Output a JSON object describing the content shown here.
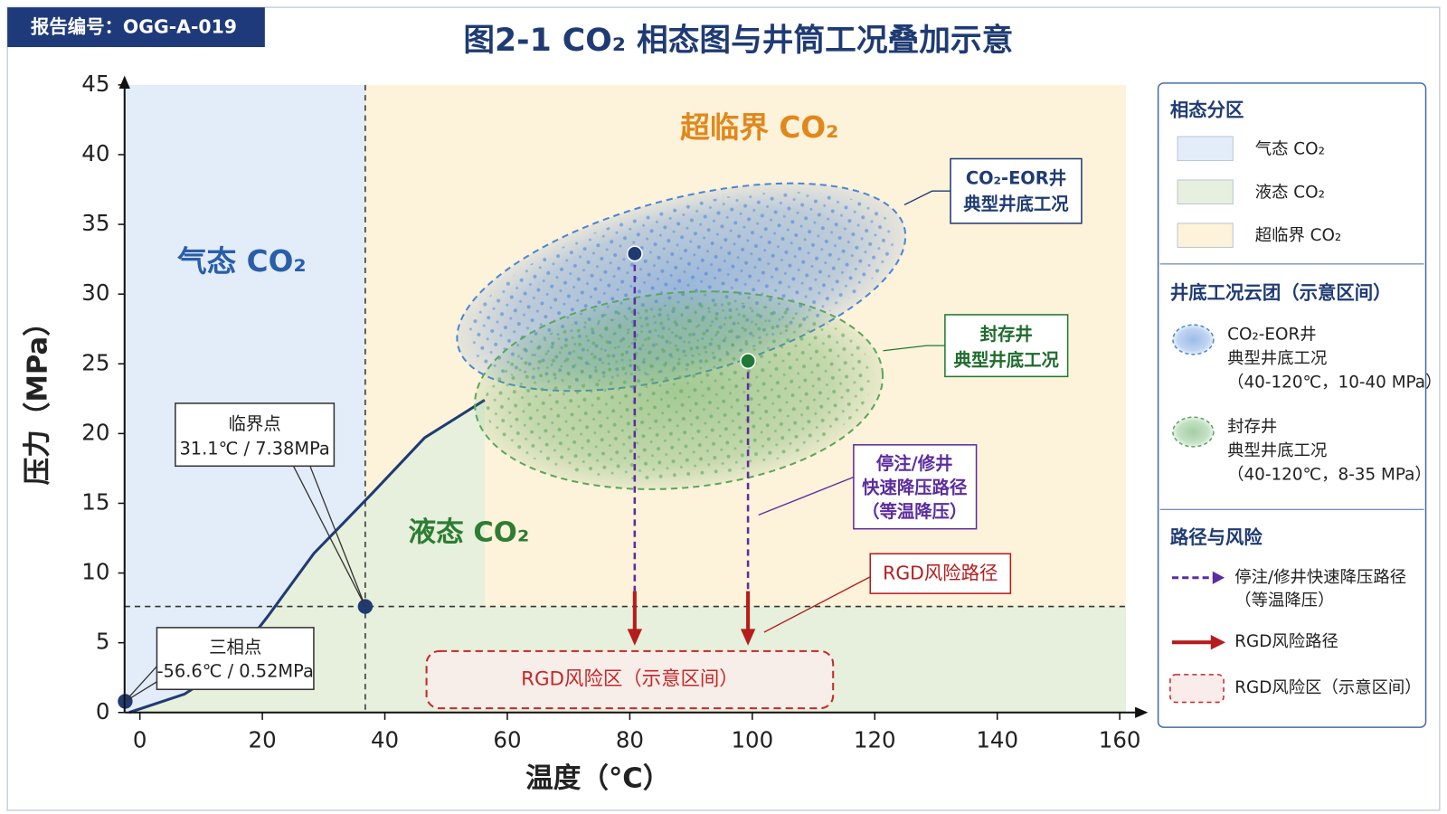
{
  "header": {
    "report_id": "报告编号：OGG-A-019"
  },
  "chart_data": {
    "type": "phase_diagram",
    "title": "图2-1  CO₂ 相态图与井筒工况叠加示意",
    "x_label": "温度（°C）",
    "y_label": "压力（MPa）",
    "xlim": [
      -2.5,
      161
    ],
    "ylim": [
      0,
      45
    ],
    "xticks": [
      0,
      20,
      40,
      60,
      80,
      100,
      120,
      140,
      160
    ],
    "yticks": [
      0,
      5,
      10,
      15,
      20,
      25,
      30,
      35,
      40,
      45
    ],
    "regions": [
      {
        "name": "气态 CO₂",
        "color": "#e3edf9",
        "label_color": "#2a5ea8"
      },
      {
        "name": "液态 CO₂",
        "color": "#e6f0dc",
        "label_color": "#2e7d32"
      },
      {
        "name": "超临界 CO₂",
        "color": "#fdf2da",
        "label_color": "#e0881c"
      }
    ],
    "phase_boundary": {
      "x": [
        -1.75,
        7.3,
        14.8,
        20.9,
        28.4,
        37.9,
        46.5,
        56.3
      ],
      "y": [
        0,
        1.32,
        3.45,
        6.9,
        11.4,
        15.7,
        19.7,
        22.4
      ],
      "color": "#1f3b73"
    },
    "critical_point": {
      "x": 36.8,
      "y": 7.6,
      "title": "临界点",
      "label": "31.1℃ / 7.38MPa"
    },
    "triple_point": {
      "x": -2.4,
      "y": 0.8,
      "title": "三相点",
      "label": "-56.6℃ / 0.52MPa"
    },
    "clouds": [
      {
        "name": "CO₂-EOR井",
        "subtitle": "典型井底工况",
        "range": "（40-120℃，10-40 MPa）",
        "color": "#4a86d8",
        "text_color": "#1f3b73",
        "center_x": 88.4,
        "center_y": 30.5,
        "rx": 37.7,
        "ry": 6.3,
        "well_x": 80.8,
        "well_y": 32.9,
        "well_color": "#1f3b73"
      },
      {
        "name": "封存井",
        "subtitle": "典型井底工况",
        "range": "（40-120℃，8-35 MPa）",
        "color": "#5aa85a",
        "text_color": "#1e6b2c",
        "center_x": 88.0,
        "center_y": 23.1,
        "rx": 33.4,
        "ry": 7.0,
        "well_x": 99.3,
        "well_y": 25.2,
        "well_color": "#1e7a34"
      }
    ],
    "decompression": {
      "label_lines": [
        "停注/修井",
        "快速降压路径",
        "（等温降压）"
      ],
      "legend_label": "停注/修井快速降压路径",
      "legend_note": "（等温降压）",
      "color": "#5b2d9e",
      "end_y": 8.7
    },
    "rgd_path": {
      "label": "RGD风险路径",
      "color": "#b51c1c",
      "end_y": 4.8
    },
    "rgd_zone": {
      "label": "RGD风险区（示意区间）",
      "xlim": [
        46.8,
        113.2
      ],
      "ylim": [
        0.3,
        4.4
      ],
      "color": "#c62828"
    },
    "legend": {
      "phase_title": "相态分区",
      "cloud_title": "井底工况云团（示意区间）",
      "path_title": "路径与风险"
    }
  }
}
